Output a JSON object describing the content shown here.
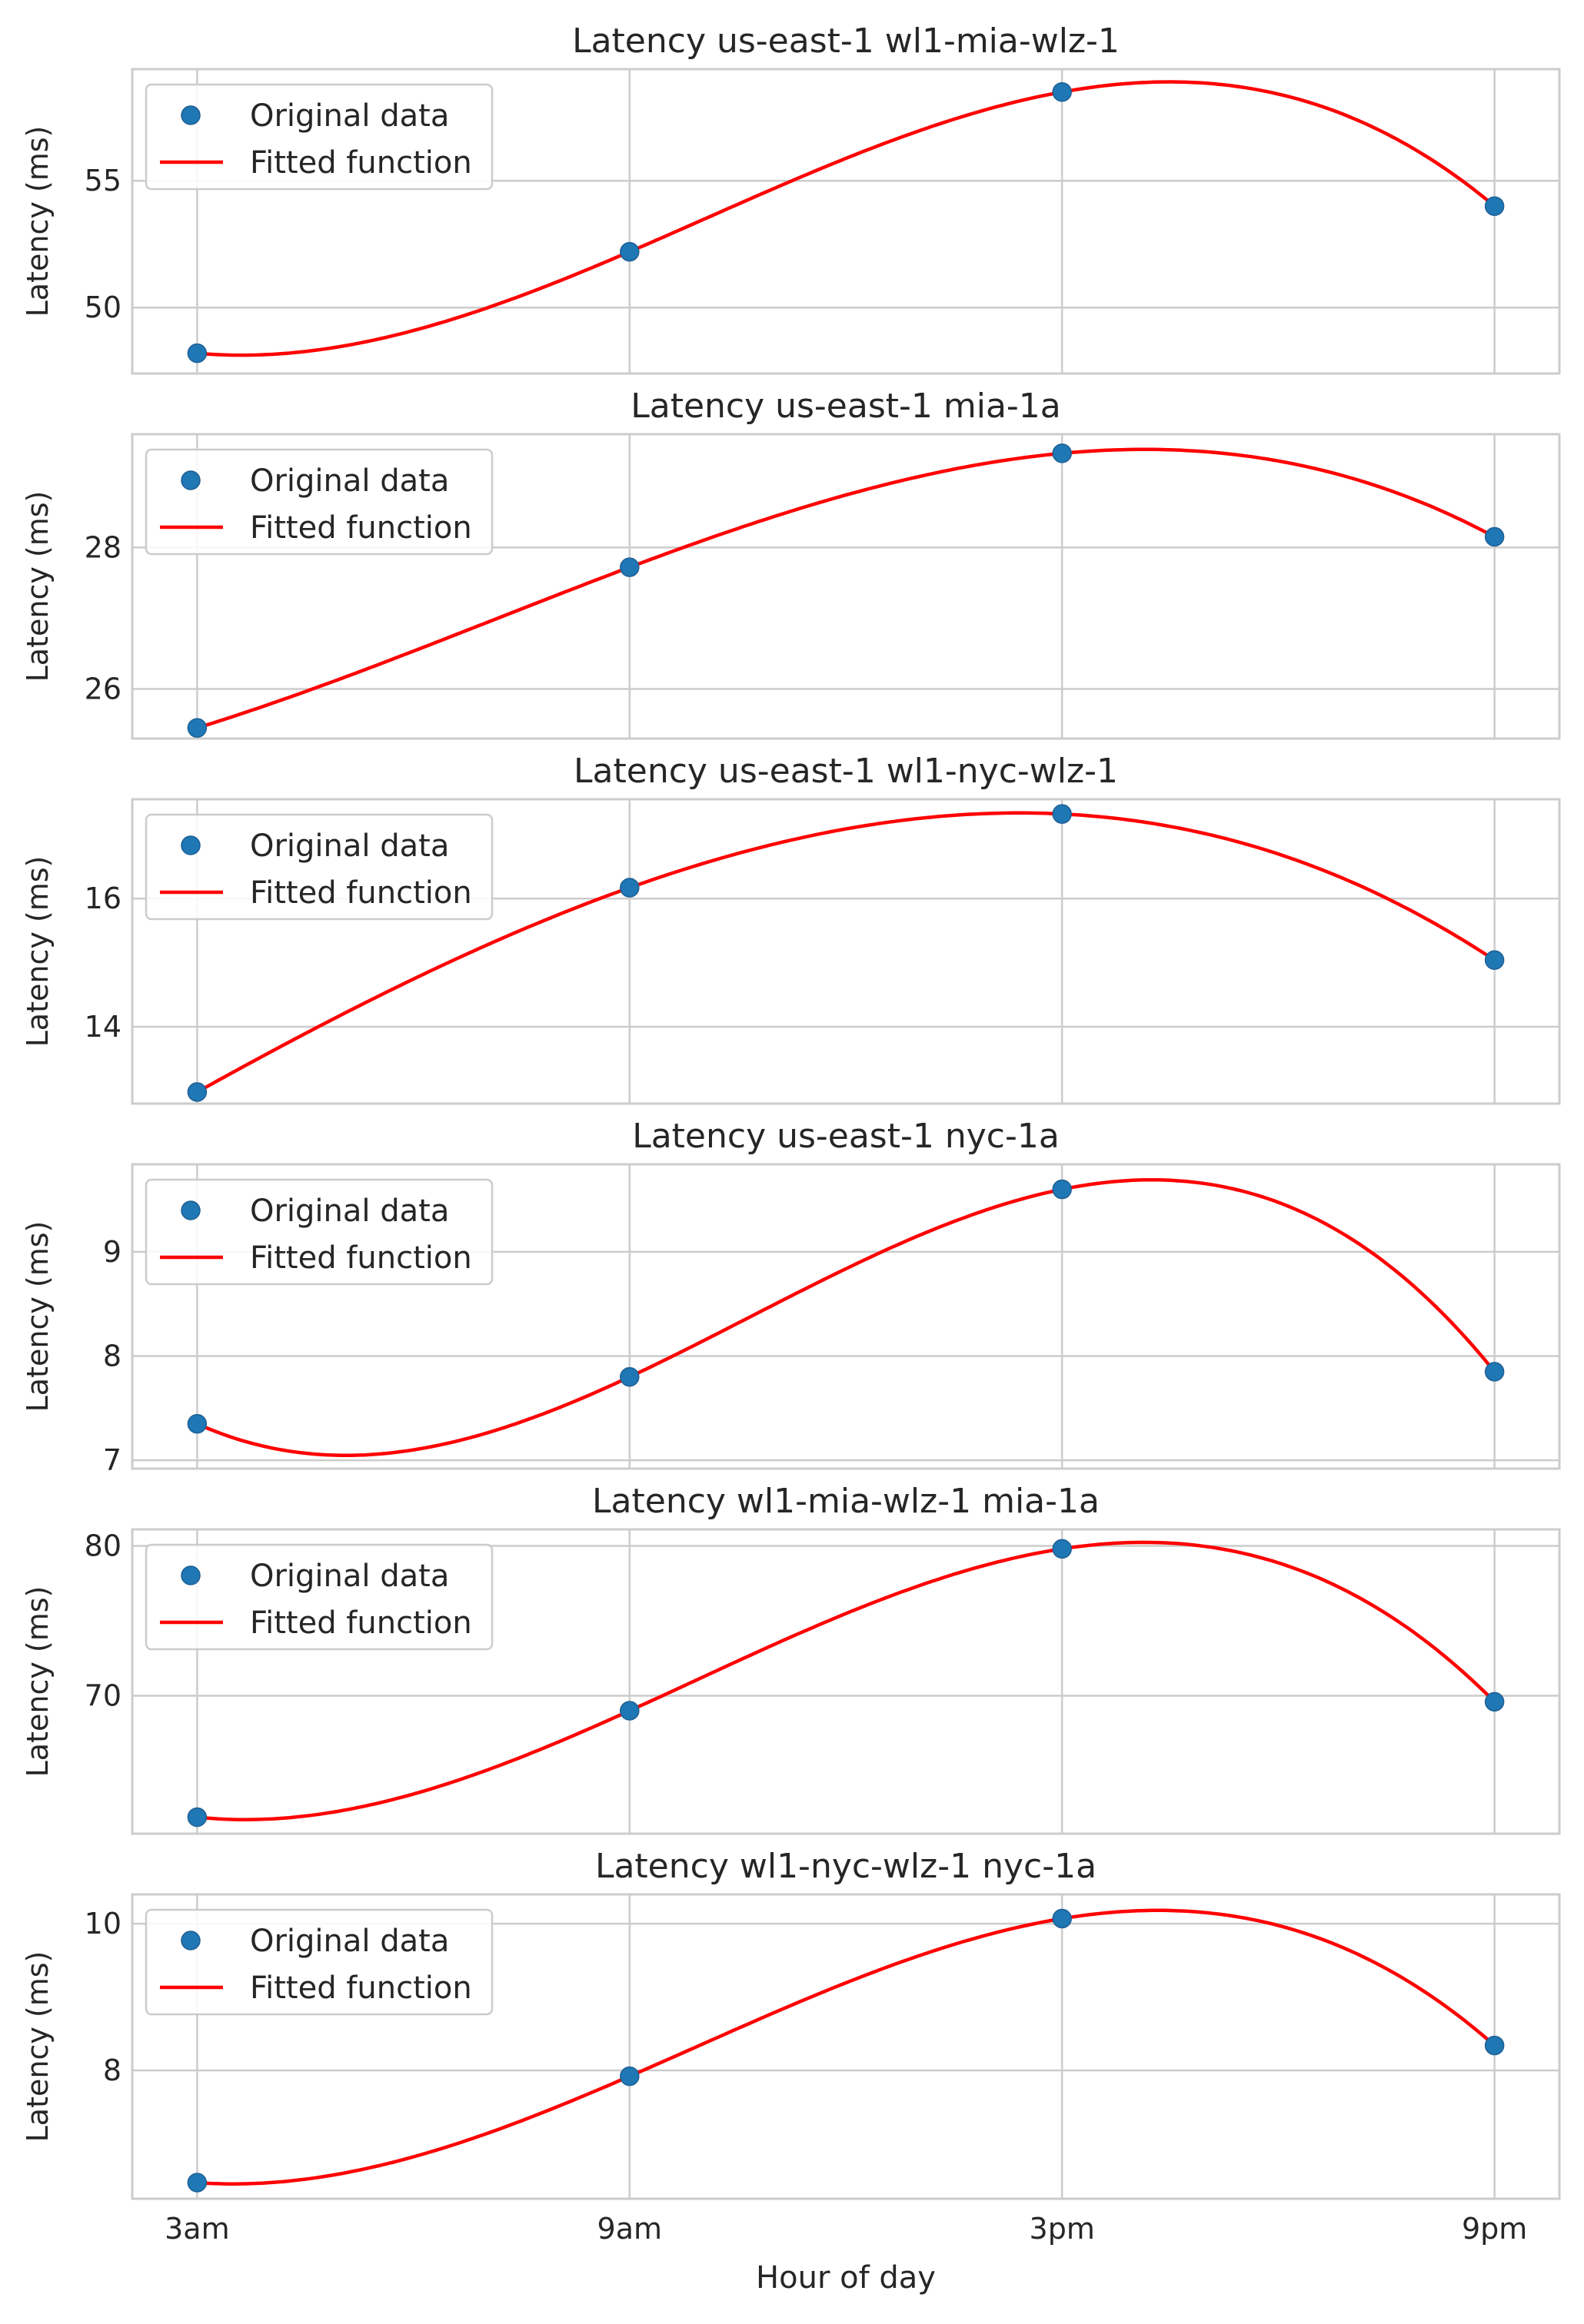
{
  "chart_data": {
    "type": "scatter",
    "x": [
      "3am",
      "9am",
      "3pm",
      "9pm"
    ],
    "xlabel": "Hour of day",
    "colors": {
      "points": "#1f77b4",
      "fit": "#ff0000",
      "grid": "#cccccc"
    },
    "legend": {
      "placement": "upper-left",
      "entries": [
        "Original data",
        "Fitted function"
      ]
    },
    "panels": [
      {
        "title": "Latency us-east-1 wl1-mia-wlz-1",
        "ylabel": "Latency (ms)",
        "ylim": [
          47.4,
          59.4
        ],
        "yticks": [
          50,
          55
        ],
        "values": [
          48.2,
          52.2,
          58.5,
          54.0
        ]
      },
      {
        "title": "Latency us-east-1 mia-1a",
        "ylabel": "Latency (ms)",
        "ylim": [
          25.3,
          29.6
        ],
        "yticks": [
          26,
          28
        ],
        "values": [
          25.45,
          27.72,
          29.33,
          28.15
        ]
      },
      {
        "title": "Latency us-east-1 wl1-nyc-wlz-1",
        "ylabel": "Latency (ms)",
        "ylim": [
          12.8,
          17.55
        ],
        "yticks": [
          14,
          16
        ],
        "values": [
          12.98,
          16.17,
          17.32,
          15.04
        ]
      },
      {
        "title": "Latency us-east-1 nyc-1a",
        "ylabel": "Latency (ms)",
        "ylim": [
          6.92,
          9.84
        ],
        "yticks": [
          7,
          8,
          9
        ],
        "values": [
          7.35,
          7.8,
          9.6,
          7.85
        ]
      },
      {
        "title": "Latency wl1-mia-wlz-1 mia-1a",
        "ylabel": "Latency (ms)",
        "ylim": [
          60.8,
          81.1
        ],
        "yticks": [
          70,
          80
        ],
        "values": [
          61.9,
          69.0,
          79.8,
          69.6
        ]
      },
      {
        "title": "Latency wl1-nyc-wlz-1 nyc-1a",
        "ylabel": "Latency (ms)",
        "ylim": [
          6.25,
          10.4
        ],
        "yticks": [
          8,
          10
        ],
        "values": [
          6.47,
          7.92,
          10.07,
          8.34
        ]
      }
    ]
  }
}
